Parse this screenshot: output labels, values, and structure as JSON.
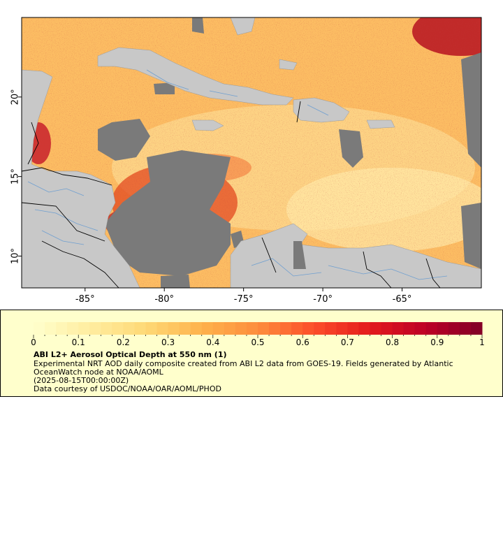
{
  "map": {
    "x_ticks": [
      "-85°",
      "-80°",
      "-75°",
      "-70°",
      "-65°"
    ],
    "x_tick_lons": [
      -85,
      -80,
      -75,
      -70,
      -65
    ],
    "y_ticks": [
      "20°",
      "15°",
      "10°"
    ],
    "y_tick_lats": [
      20,
      15,
      10
    ],
    "lon_range": [
      -89,
      -60
    ],
    "lat_range": [
      8,
      25
    ],
    "colors": {
      "land": "#c8c8c8",
      "cloud_mask": "#7a7a7a",
      "rivers": "#6f9fd0",
      "borders": "#000000"
    }
  },
  "colorbar": {
    "ticks": [
      "0",
      "0.1",
      "0.2",
      "0.3",
      "0.4",
      "0.5",
      "0.6",
      "0.7",
      "0.8",
      "0.9",
      "1"
    ],
    "min": 0,
    "max": 1,
    "colormap": "YlOrRd"
  },
  "legend": {
    "title": "ABI L2+ Aerosol Optical Depth at 550 nm (1)",
    "description_line1": "Experimental NRT AOD daily composite created from ABI L2 data from GOES-19. Fields generated by Atlantic",
    "description_line2": "OceanWatch node at NOAA/AOML",
    "date": "(2025-08-15T00:00:00Z)",
    "credit": "Data courtesy of USDOC/NOAA/OAR/AOML/PHOD"
  }
}
